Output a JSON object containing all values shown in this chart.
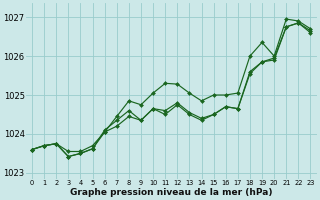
{
  "background_color": "#cce8e8",
  "grid_color": "#99cccc",
  "line_color": "#1a6620",
  "marker_color": "#1a6620",
  "xlabel": "Graphe pression niveau de la mer (hPa)",
  "ylabel_ticks": [
    1023,
    1024,
    1025,
    1026,
    1027
  ],
  "xlim": [
    -0.5,
    23.5
  ],
  "ylim": [
    1022.85,
    1027.35
  ],
  "series": [
    [
      1023.6,
      1023.7,
      1023.75,
      1023.55,
      1023.55,
      1023.7,
      1024.05,
      1024.45,
      1024.85,
      1024.75,
      1025.05,
      1025.3,
      1025.28,
      1025.05,
      1024.85,
      1025.0,
      1025.0,
      1025.05,
      1026.0,
      1026.35,
      1026.0,
      1026.95,
      1026.9,
      1026.7
    ],
    [
      1023.6,
      1023.7,
      1023.75,
      1023.42,
      1023.5,
      1023.62,
      1024.1,
      1024.35,
      1024.6,
      1024.35,
      1024.65,
      1024.6,
      1024.8,
      1024.55,
      1024.4,
      1024.5,
      1024.7,
      1024.65,
      1025.55,
      1025.85,
      1025.95,
      1026.75,
      1026.85,
      1026.65
    ],
    [
      1023.6,
      1023.7,
      1023.75,
      1023.42,
      1023.5,
      1023.62,
      1024.05,
      1024.2,
      1024.45,
      1024.35,
      1024.65,
      1024.5,
      1024.75,
      1024.5,
      1024.35,
      1024.5,
      1024.7,
      1024.65,
      1025.6,
      1025.85,
      1025.9,
      1026.75,
      1026.85,
      1026.6
    ]
  ],
  "figsize": [
    3.2,
    2.0
  ],
  "dpi": 100,
  "xlabel_fontsize": 6.5,
  "ytick_fontsize": 6.0,
  "xtick_fontsize": 4.8,
  "linewidth": 0.85,
  "markersize": 2.0
}
